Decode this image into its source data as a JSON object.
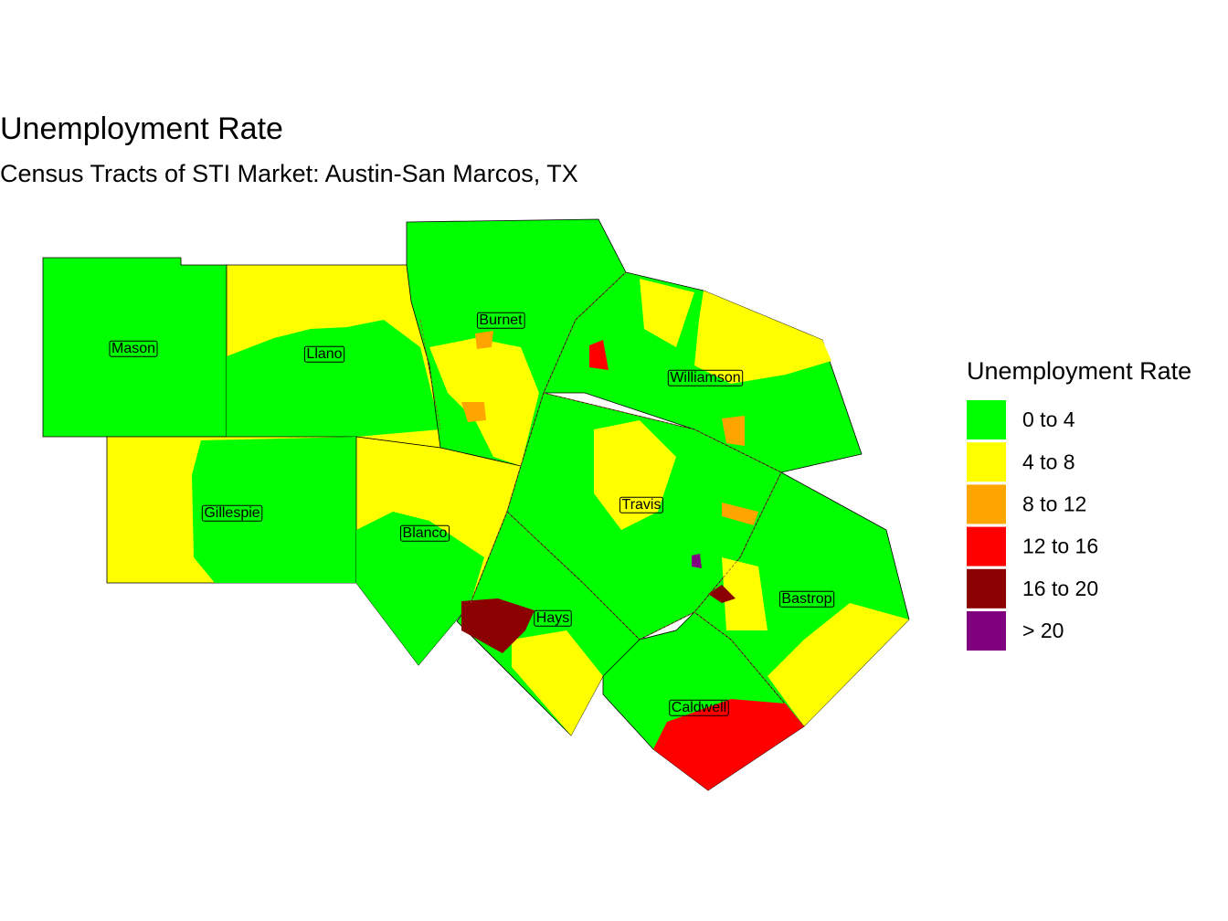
{
  "header": {
    "title": "Unemployment Rate",
    "subtitle": "Census Tracts of STI Market: Austin-San Marcos, TX"
  },
  "legend": {
    "title": "Unemployment Rate",
    "items": [
      {
        "label": "0 to 4",
        "color": "#00ff00"
      },
      {
        "label": "4 to 8",
        "color": "#ffff00"
      },
      {
        "label": "8 to 12",
        "color": "#ffa500"
      },
      {
        "label": "12 to 16",
        "color": "#ff0000"
      },
      {
        "label": "16 to 20",
        "color": "#8b0000"
      },
      {
        "label": "> 20",
        "color": "#800080"
      }
    ]
  },
  "counties": [
    {
      "label": "Mason"
    },
    {
      "label": "Llano"
    },
    {
      "label": "Burnet"
    },
    {
      "label": "Williamson"
    },
    {
      "label": "Gillespie"
    },
    {
      "label": "Blanco"
    },
    {
      "label": "Travis"
    },
    {
      "label": "Hays"
    },
    {
      "label": "Bastrop"
    },
    {
      "label": "Caldwell"
    }
  ]
}
